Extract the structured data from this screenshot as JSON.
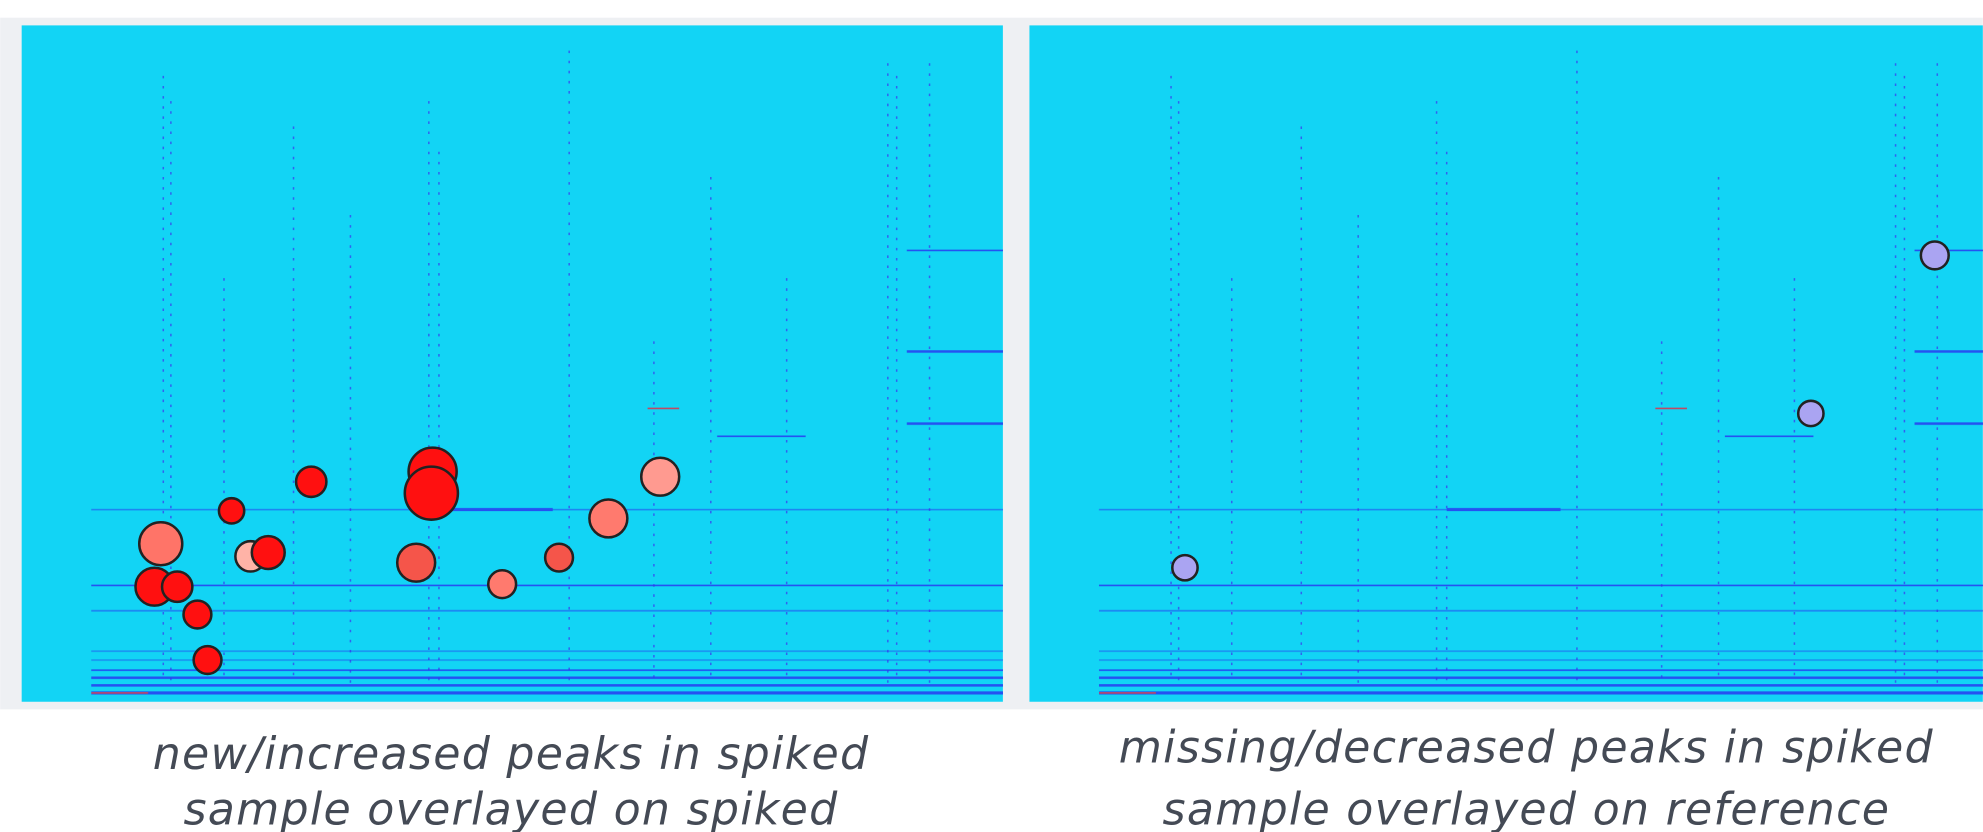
{
  "panels": [
    {
      "caption_lines": [
        "new/increased peaks in spiked",
        "sample overlayed on spiked"
      ]
    },
    {
      "caption_lines": [
        "missing/decreased peaks in spiked",
        "sample overlayed on reference"
      ]
    }
  ]
}
